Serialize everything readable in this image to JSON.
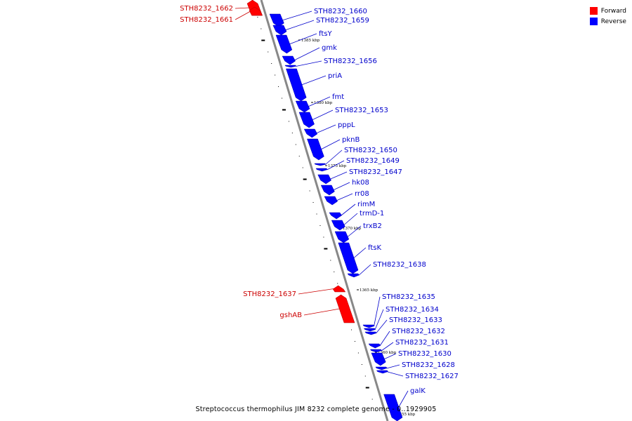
{
  "legend": {
    "forward": {
      "label": "Forward",
      "color": "#ff0000"
    },
    "reverse": {
      "label": "Reverse",
      "color": "#0000ff"
    }
  },
  "caption": "Streptococcus thermophilus JIM 8232 complete genome - 0..1929905",
  "colors": {
    "backbone": "#888888",
    "forward": "#ff0000",
    "reverse": "#0000ff",
    "forward_label": "#cc0000",
    "reverse_label": "#0000cc"
  },
  "ticks": [
    "1385 kbp",
    "1380 kbp",
    "1375 kbp",
    "1370 kbp",
    "1365 kbp",
    "1360 kbp",
    "1355 kbp"
  ],
  "genes": [
    {
      "name": "STH8232_1662",
      "strand": "forward"
    },
    {
      "name": "STH8232_1661",
      "strand": "forward"
    },
    {
      "name": "STH8232_1660",
      "strand": "reverse"
    },
    {
      "name": "STH8232_1659",
      "strand": "reverse"
    },
    {
      "name": "ftsY",
      "strand": "reverse"
    },
    {
      "name": "gmk",
      "strand": "reverse"
    },
    {
      "name": "STH8232_1656",
      "strand": "reverse"
    },
    {
      "name": "priA",
      "strand": "reverse"
    },
    {
      "name": "fmt",
      "strand": "reverse"
    },
    {
      "name": "STH8232_1653",
      "strand": "reverse"
    },
    {
      "name": "pppL",
      "strand": "reverse"
    },
    {
      "name": "pknB",
      "strand": "reverse"
    },
    {
      "name": "STH8232_1650",
      "strand": "reverse"
    },
    {
      "name": "STH8232_1649",
      "strand": "reverse"
    },
    {
      "name": "STH8232_1647",
      "strand": "reverse"
    },
    {
      "name": "hk08",
      "strand": "reverse"
    },
    {
      "name": "rr08",
      "strand": "reverse"
    },
    {
      "name": "rimM",
      "strand": "reverse"
    },
    {
      "name": "trmD-1",
      "strand": "reverse"
    },
    {
      "name": "trxB2",
      "strand": "reverse"
    },
    {
      "name": "ftsK",
      "strand": "reverse"
    },
    {
      "name": "STH8232_1638",
      "strand": "reverse"
    },
    {
      "name": "STH8232_1637",
      "strand": "forward"
    },
    {
      "name": "gshAB",
      "strand": "forward"
    },
    {
      "name": "STH8232_1635",
      "strand": "reverse"
    },
    {
      "name": "STH8232_1634",
      "strand": "reverse"
    },
    {
      "name": "STH8232_1633",
      "strand": "reverse"
    },
    {
      "name": "STH8232_1632",
      "strand": "reverse"
    },
    {
      "name": "STH8232_1631",
      "strand": "reverse"
    },
    {
      "name": "STH8232_1630",
      "strand": "reverse"
    },
    {
      "name": "STH8232_1628",
      "strand": "reverse"
    },
    {
      "name": "STH8232_1627",
      "strand": "reverse"
    },
    {
      "name": "galK",
      "strand": "reverse"
    }
  ]
}
